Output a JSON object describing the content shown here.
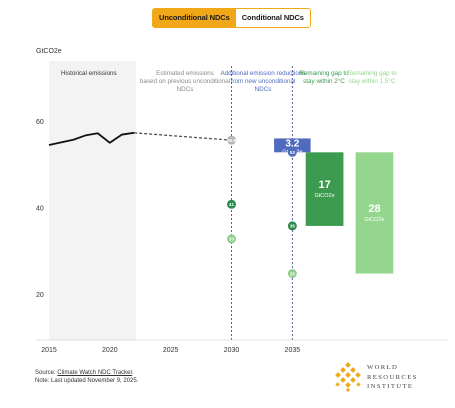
{
  "toggle": {
    "options": [
      "Unconditional NDCs",
      "Conditional NDCs"
    ],
    "active": "Unconditional NDCs"
  },
  "colors": {
    "accent": "#f0a818",
    "historical_line": "#111111",
    "projection_dash": "#555555",
    "unconditional_marker": "#2e8b4f",
    "conditional_marker": "#8fd18c",
    "reduction_bar": "#4f6bbd",
    "gap_2c": "#3c9b4e",
    "gap_15c": "#95d68e",
    "shade": "#f3f3f3"
  },
  "chart_data": {
    "type": "line",
    "ylabel": "GtCO2e",
    "xlim": [
      2015,
      2039
    ],
    "ylim": [
      10,
      67
    ],
    "y_ticks": [
      20,
      40,
      60
    ],
    "x_ticks": [
      2015,
      2020,
      2025,
      2030,
      2035
    ],
    "grid": false,
    "historical": {
      "x": [
        2015,
        2016,
        2017,
        2018,
        2019,
        2020,
        2021,
        2022
      ],
      "y": [
        54.7,
        55.3,
        55.9,
        56.9,
        57.4,
        55.2,
        57.1,
        57.5
      ]
    },
    "projection": {
      "x": [
        2022,
        2030
      ],
      "y": [
        57.5,
        55.8
      ]
    },
    "region_labels": {
      "historical": "Historical emissions",
      "estimated": "Estimated emissions based on previous unconditional NDCs",
      "reductions": "Additional emission reductions from new unconditional NDCs",
      "gap_2c": "Remaining gap to stay within 2°C",
      "gap_15c": "Remaining gap to stay within 1.5°C"
    },
    "markers": [
      {
        "x": 2030,
        "y": 55.8,
        "label": "55.8",
        "kind": "projection"
      },
      {
        "x": 2030,
        "y": 41,
        "label": "41",
        "kind": "unconditional"
      },
      {
        "x": 2030,
        "y": 33,
        "label": "33",
        "kind": "conditional"
      },
      {
        "x": 2035,
        "y": 53,
        "label": "53",
        "kind": "reduction"
      },
      {
        "x": 2035,
        "y": 36,
        "label": "36",
        "kind": "unconditional"
      },
      {
        "x": 2035,
        "y": 25,
        "label": "25",
        "kind": "conditional"
      }
    ],
    "bars": [
      {
        "x_from": 2033.5,
        "x_to": 2036.5,
        "y_from": 53,
        "y_to": 56.2,
        "value": "3.2",
        "unit": "GtCO2e",
        "kind": "reduction"
      },
      {
        "x_from": 2036.1,
        "x_to": 2039.2,
        "y_from": 36,
        "y_to": 53,
        "value": "17",
        "unit": "GtCO2e",
        "kind": "gap_2c"
      },
      {
        "x_from": 2040.2,
        "x_to": 2043.3,
        "y_from": 25,
        "y_to": 53,
        "value": "28",
        "unit": "GtCO2e",
        "kind": "gap_15c"
      }
    ]
  },
  "footer": {
    "source_prefix": "Source: ",
    "source_link": "Climate Watch NDC Tracker",
    "source_suffix": ".",
    "note": "Note: Last updated November 9, 2025."
  },
  "logo": {
    "lines": [
      "WORLD",
      "RESOURCES",
      "INSTITUTE"
    ]
  }
}
